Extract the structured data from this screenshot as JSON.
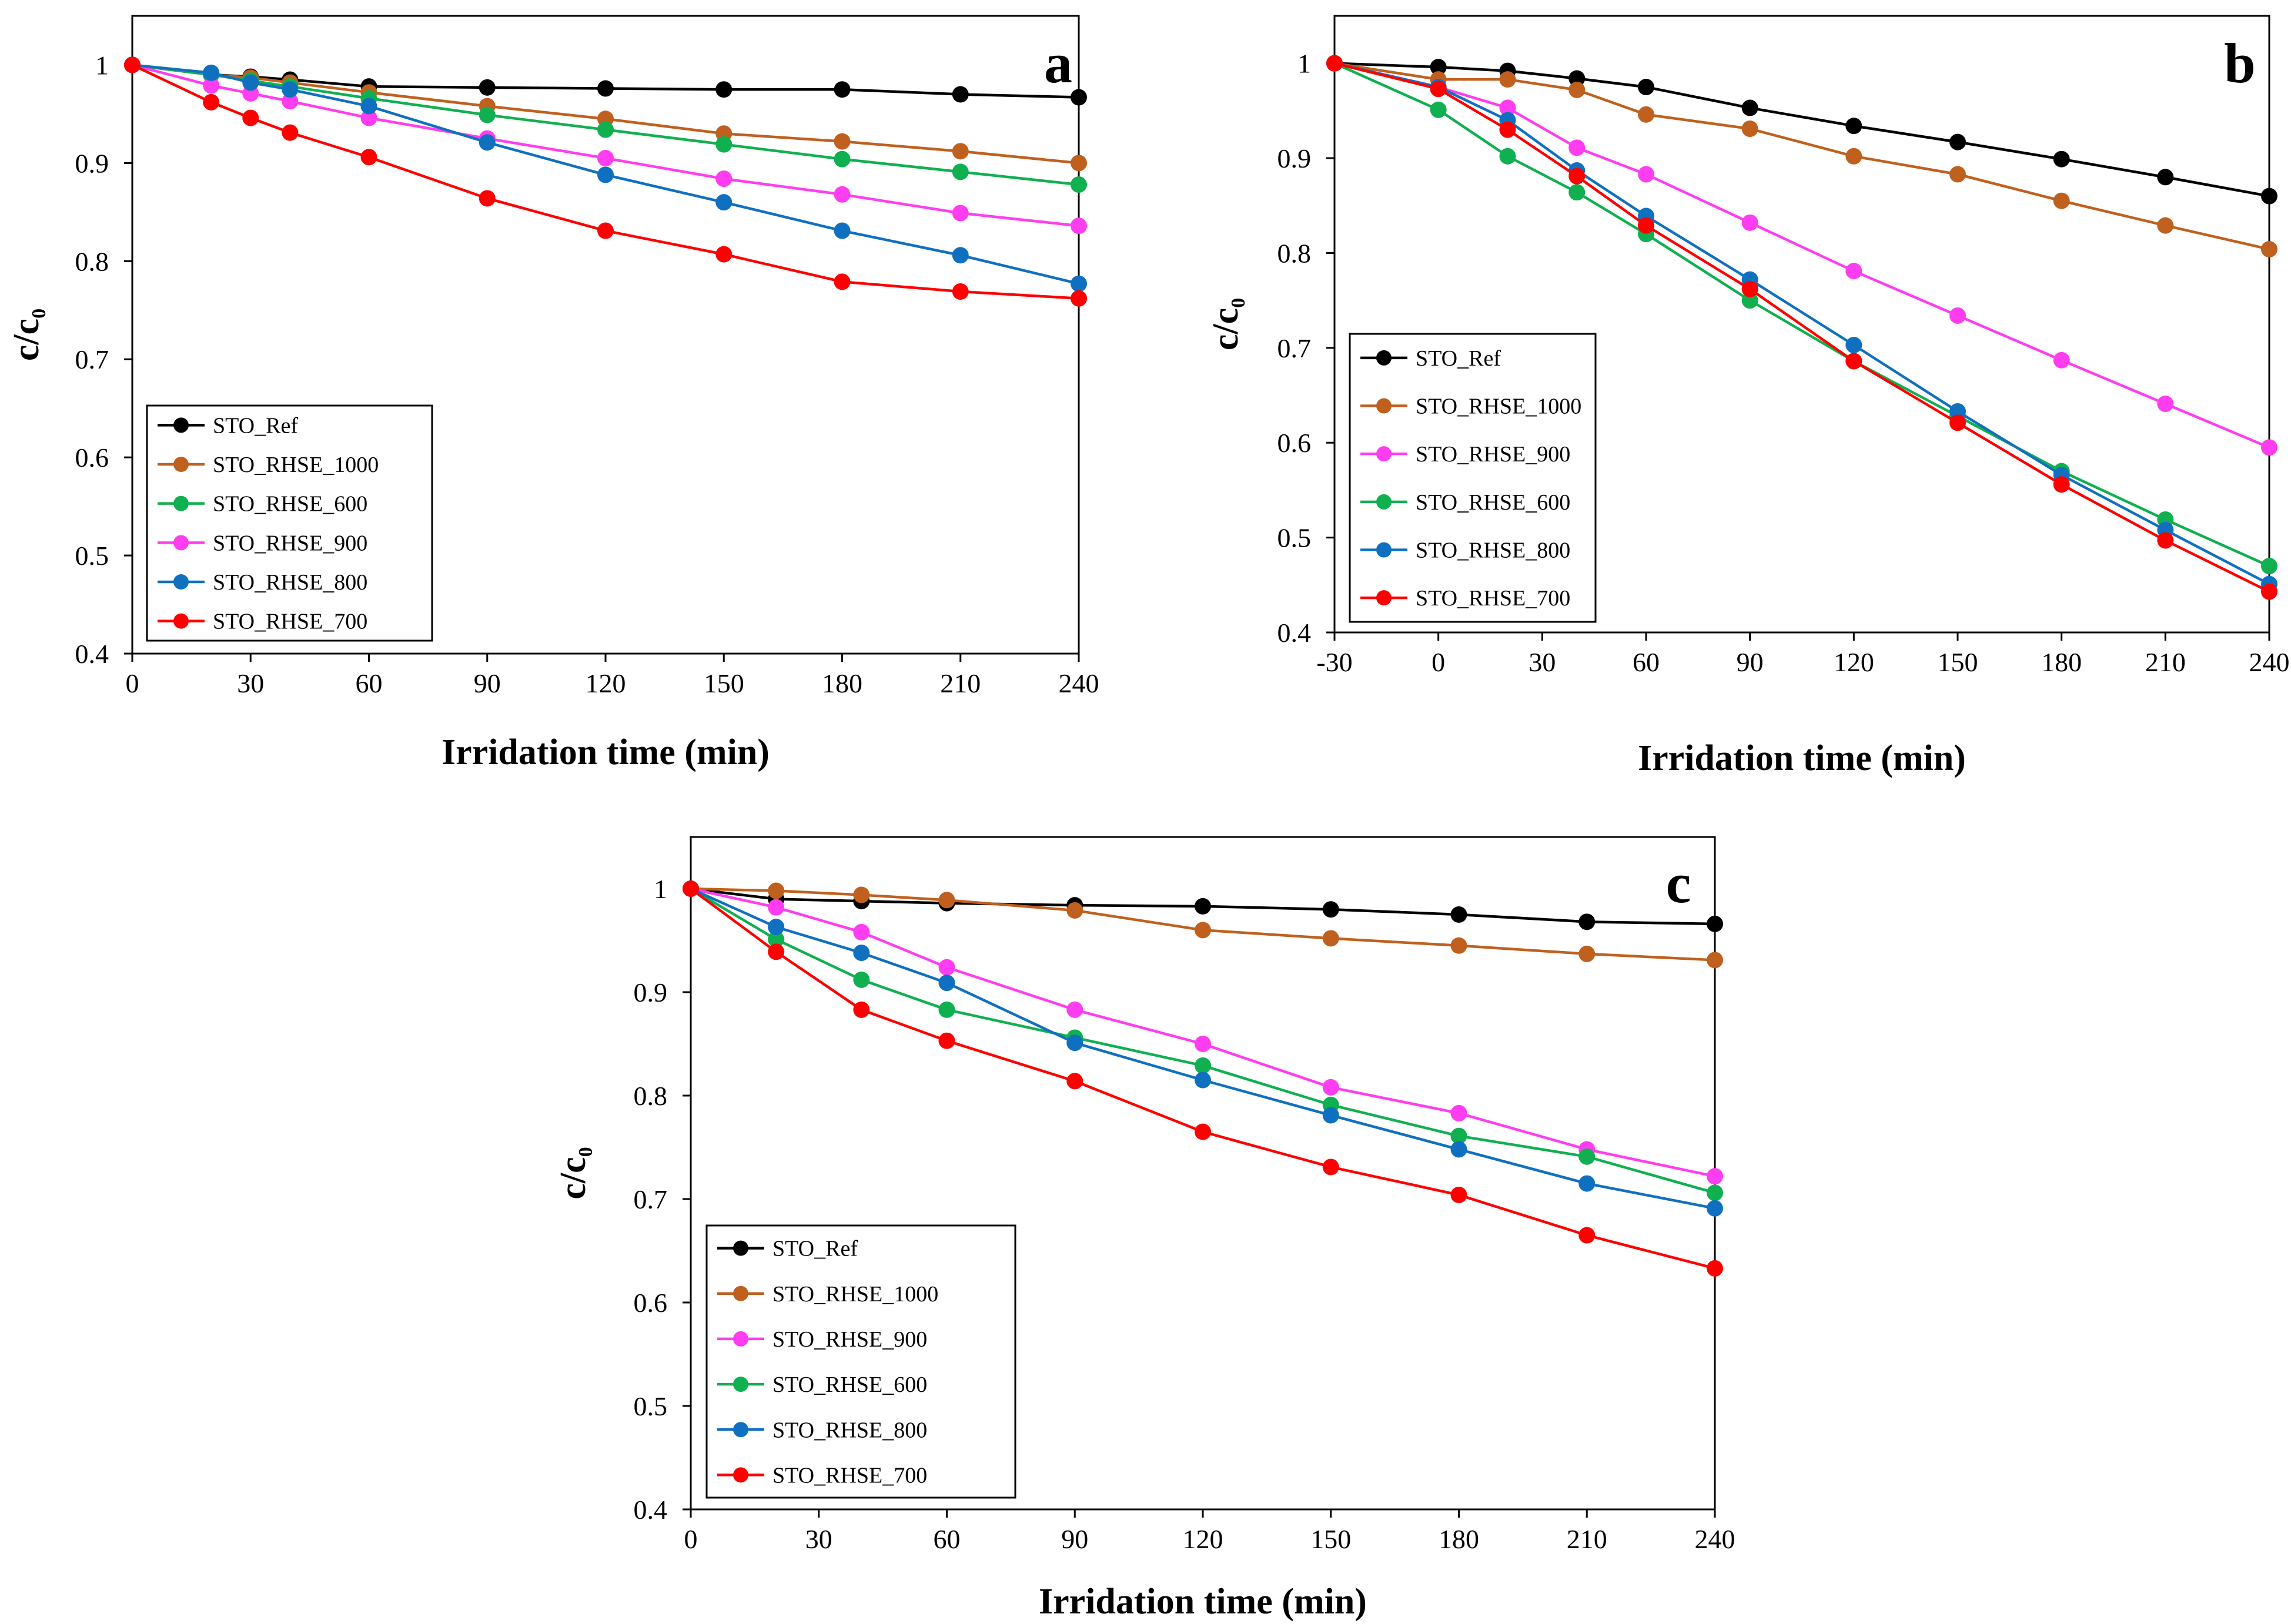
{
  "colors": {
    "STO_Ref": "#000000",
    "STO_RHSE_1000": "#C0601E",
    "STO_RHSE_600": "#10B050",
    "STO_RHSE_900": "#FF3DF0",
    "STO_RHSE_800": "#1070C0",
    "STO_RHSE_700": "#FF0000"
  },
  "chart_data": [
    {
      "type": "line",
      "panel": "a",
      "xlabel": "Irridation time (min)",
      "ylabel_main": "c/c",
      "ylabel_sub": "0",
      "xlim": [
        0,
        240
      ],
      "ylim": [
        0.4,
        1.05
      ],
      "xticks": [
        0,
        30,
        60,
        90,
        120,
        150,
        180,
        210,
        240
      ],
      "xtick_labels": [
        "0",
        "30",
        "60",
        "90",
        "120",
        "150",
        "180",
        "210",
        "240"
      ],
      "yticks": [
        0.4,
        0.5,
        0.6,
        0.7,
        0.8,
        0.9,
        1
      ],
      "ytick_labels": [
        "0.4",
        "0.5",
        "0.6",
        "0.7",
        "0.8",
        "0.9",
        "1"
      ],
      "legend_position": "bottom-left",
      "series": [
        {
          "name": "STO_Ref",
          "x": [
            0,
            20,
            30,
            40,
            60,
            90,
            120,
            150,
            180,
            210,
            240
          ],
          "y": [
            1.0,
            0.99,
            0.988,
            0.985,
            0.978,
            0.977,
            0.976,
            0.975,
            0.975,
            0.97,
            0.967
          ]
        },
        {
          "name": "STO_RHSE_1000",
          "x": [
            0,
            20,
            30,
            40,
            60,
            90,
            120,
            150,
            180,
            210,
            240
          ],
          "y": [
            1.0,
            0.99,
            0.987,
            0.982,
            0.972,
            0.958,
            0.945,
            0.93,
            0.922,
            0.912,
            0.9
          ]
        },
        {
          "name": "STO_RHSE_600",
          "x": [
            0,
            20,
            30,
            40,
            60,
            90,
            120,
            150,
            180,
            210,
            240
          ],
          "y": [
            1.0,
            0.99,
            0.984,
            0.978,
            0.966,
            0.949,
            0.934,
            0.919,
            0.904,
            0.891,
            0.878
          ]
        },
        {
          "name": "STO_RHSE_900",
          "x": [
            0,
            20,
            30,
            40,
            60,
            90,
            120,
            150,
            180,
            210,
            240
          ],
          "y": [
            1.0,
            0.979,
            0.971,
            0.963,
            0.946,
            0.925,
            0.905,
            0.884,
            0.868,
            0.849,
            0.836
          ]
        },
        {
          "name": "STO_RHSE_800",
          "x": [
            0,
            20,
            30,
            40,
            60,
            90,
            120,
            150,
            180,
            210,
            240
          ],
          "y": [
            1.0,
            0.992,
            0.982,
            0.975,
            0.958,
            0.921,
            0.888,
            0.86,
            0.831,
            0.806,
            0.777
          ]
        },
        {
          "name": "STO_RHSE_700",
          "x": [
            0,
            20,
            30,
            40,
            60,
            90,
            120,
            150,
            180,
            210,
            240
          ],
          "y": [
            1.0,
            0.962,
            0.946,
            0.931,
            0.906,
            0.864,
            0.831,
            0.807,
            0.779,
            0.769,
            0.762
          ]
        }
      ]
    },
    {
      "type": "line",
      "panel": "b",
      "xlabel": "Irridation time (min)",
      "ylabel_main": "c/c",
      "ylabel_sub": "0",
      "xlim": [
        -30,
        240
      ],
      "ylim": [
        0.4,
        1.05
      ],
      "xticks": [
        -30,
        0,
        30,
        60,
        90,
        120,
        150,
        180,
        210,
        240
      ],
      "xtick_labels": [
        "-30",
        "0",
        "30",
        "60",
        "90",
        "120",
        "150",
        "180",
        "210",
        "240"
      ],
      "yticks": [
        0.4,
        0.5,
        0.6,
        0.7,
        0.8,
        0.9,
        1
      ],
      "ytick_labels": [
        "0.4",
        "0.5",
        "0.6",
        "0.7",
        "0.8",
        "0.9",
        "1"
      ],
      "legend_position": "bottom-left",
      "series": [
        {
          "name": "STO_Ref",
          "x": [
            -30,
            0,
            20,
            40,
            60,
            90,
            120,
            150,
            180,
            210,
            240
          ],
          "y": [
            1.0,
            0.996,
            0.992,
            0.984,
            0.975,
            0.953,
            0.934,
            0.917,
            0.899,
            0.88,
            0.86
          ]
        },
        {
          "name": "STO_RHSE_1000",
          "x": [
            -30,
            0,
            20,
            40,
            60,
            90,
            120,
            150,
            180,
            210,
            240
          ],
          "y": [
            1.0,
            0.983,
            0.983,
            0.972,
            0.946,
            0.931,
            0.902,
            0.883,
            0.855,
            0.829,
            0.804
          ]
        },
        {
          "name": "STO_RHSE_900",
          "x": [
            -30,
            0,
            20,
            40,
            60,
            90,
            120,
            150,
            180,
            210,
            240
          ],
          "y": [
            1.0,
            0.975,
            0.953,
            0.911,
            0.883,
            0.832,
            0.781,
            0.734,
            0.687,
            0.641,
            0.595
          ]
        },
        {
          "name": "STO_RHSE_600",
          "x": [
            -30,
            0,
            20,
            40,
            60,
            90,
            120,
            150,
            180,
            210,
            240
          ],
          "y": [
            1.0,
            0.951,
            0.902,
            0.864,
            0.82,
            0.75,
            0.686,
            0.628,
            0.57,
            0.519,
            0.47
          ]
        },
        {
          "name": "STO_RHSE_800",
          "x": [
            -30,
            0,
            20,
            40,
            60,
            90,
            120,
            150,
            180,
            210,
            240
          ],
          "y": [
            1.0,
            0.975,
            0.94,
            0.887,
            0.839,
            0.772,
            0.703,
            0.633,
            0.566,
            0.508,
            0.451
          ]
        },
        {
          "name": "STO_RHSE_700",
          "x": [
            -30,
            0,
            20,
            40,
            60,
            90,
            120,
            150,
            180,
            210,
            240
          ],
          "y": [
            1.0,
            0.973,
            0.93,
            0.881,
            0.829,
            0.762,
            0.686,
            0.621,
            0.556,
            0.497,
            0.443
          ]
        }
      ]
    },
    {
      "type": "line",
      "panel": "c",
      "xlabel": "Irridation time (min)",
      "ylabel_main": "c/c",
      "ylabel_sub": "0",
      "xlim": [
        0,
        240
      ],
      "ylim": [
        0.4,
        1.05
      ],
      "xticks": [
        0,
        30,
        60,
        90,
        120,
        150,
        180,
        210,
        240
      ],
      "xtick_labels": [
        "0",
        "30",
        "60",
        "90",
        "120",
        "150",
        "180",
        "210",
        "240"
      ],
      "yticks": [
        0.4,
        0.5,
        0.6,
        0.7,
        0.8,
        0.9,
        1
      ],
      "ytick_labels": [
        "0.4",
        "0.5",
        "0.6",
        "0.7",
        "0.8",
        "0.9",
        "1"
      ],
      "legend_position": "bottom-left",
      "series": [
        {
          "name": "STO_Ref",
          "x": [
            0,
            20,
            40,
            60,
            90,
            120,
            150,
            180,
            210,
            240
          ],
          "y": [
            1.0,
            0.99,
            0.988,
            0.986,
            0.984,
            0.983,
            0.98,
            0.975,
            0.968,
            0.966
          ]
        },
        {
          "name": "STO_RHSE_1000",
          "x": [
            0,
            20,
            40,
            60,
            90,
            120,
            150,
            180,
            210,
            240
          ],
          "y": [
            1.0,
            0.998,
            0.994,
            0.989,
            0.979,
            0.96,
            0.952,
            0.945,
            0.937,
            0.931
          ]
        },
        {
          "name": "STO_RHSE_900",
          "x": [
            0,
            20,
            40,
            60,
            90,
            120,
            150,
            180,
            210,
            240
          ],
          "y": [
            1.0,
            0.982,
            0.958,
            0.924,
            0.883,
            0.85,
            0.808,
            0.783,
            0.748,
            0.722
          ]
        },
        {
          "name": "STO_RHSE_600",
          "x": [
            0,
            20,
            40,
            60,
            90,
            120,
            150,
            180,
            210,
            240
          ],
          "y": [
            1.0,
            0.951,
            0.912,
            0.883,
            0.856,
            0.829,
            0.791,
            0.761,
            0.741,
            0.706
          ]
        },
        {
          "name": "STO_RHSE_800",
          "x": [
            0,
            20,
            40,
            60,
            90,
            120,
            150,
            180,
            210,
            240
          ],
          "y": [
            1.0,
            0.963,
            0.938,
            0.909,
            0.851,
            0.815,
            0.781,
            0.748,
            0.715,
            0.691
          ]
        },
        {
          "name": "STO_RHSE_700",
          "x": [
            0,
            20,
            40,
            60,
            90,
            120,
            150,
            180,
            210,
            240
          ],
          "y": [
            1.0,
            0.939,
            0.883,
            0.853,
            0.814,
            0.765,
            0.731,
            0.704,
            0.665,
            0.633
          ]
        }
      ]
    }
  ]
}
